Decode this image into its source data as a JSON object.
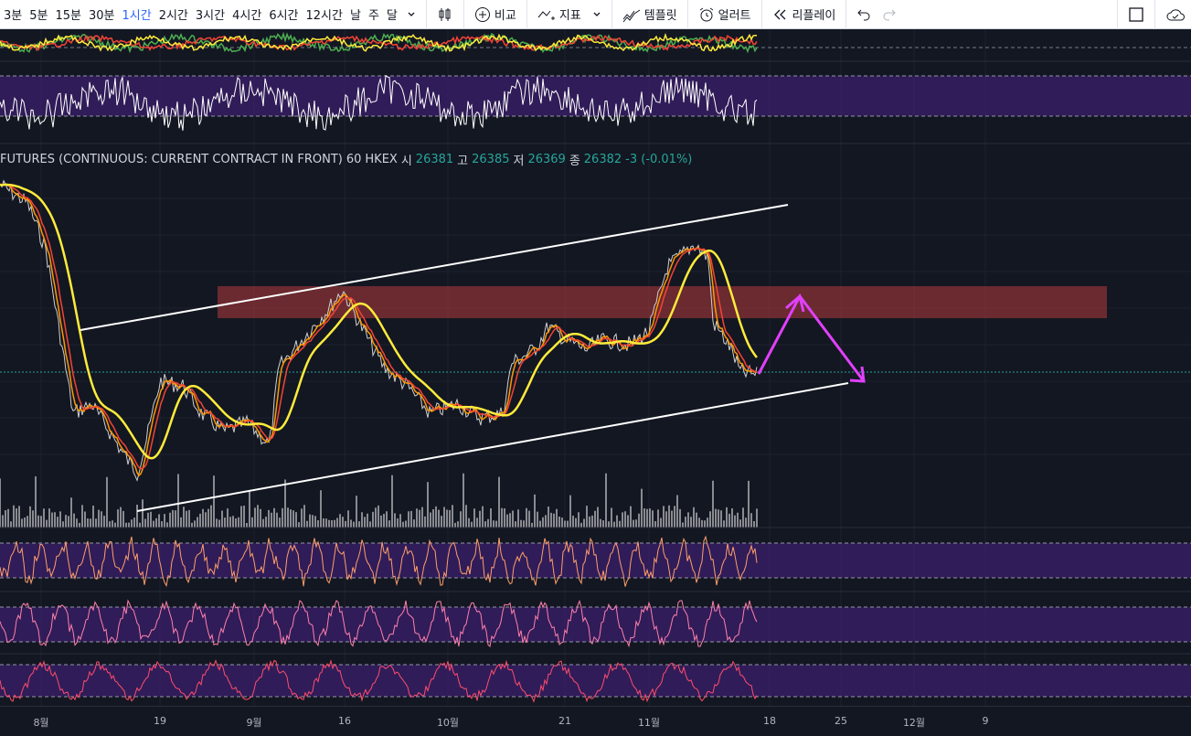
{
  "toolbar": {
    "timeframes": [
      "3분",
      "5분",
      "15분",
      "30분",
      "1시간",
      "2시간",
      "3시간",
      "4시간",
      "6시간",
      "12시간",
      "날",
      "주",
      "달"
    ],
    "active_timeframe": "1시간",
    "compare_label": "비교",
    "indicators_label": "지표",
    "templates_label": "템플릿",
    "alert_label": "얼러트",
    "replay_label": "리플레이",
    "icons": {
      "timeframe_menu": "chevron-down-icon",
      "chart_type": "candlestick-icon",
      "compare": "plus-circle-icon",
      "indicators": "indicators-icon",
      "indicators_menu": "chevron-down-icon",
      "templates": "templates-icon",
      "alert": "alarm-clock-icon",
      "replay": "rewind-icon",
      "undo": "undo-icon",
      "redo": "redo-icon",
      "fullscreen": "square-icon",
      "cloud": "cloud-icon"
    }
  },
  "legend": {
    "symbol": "FUTURES (CONTINUOUS: CURRENT CONTRACT IN FRONT)",
    "interval": "60",
    "exchange": "HKEX",
    "open_label": "시",
    "open": "26381",
    "high_label": "고",
    "high": "26385",
    "low_label": "저",
    "low": "26369",
    "close_label": "종",
    "close": "26382",
    "change": "-3 (-0.01%)"
  },
  "time_axis": [
    "8월",
    "19",
    "9월",
    "16",
    "10월",
    "21",
    "11월",
    "18",
    "25",
    "12월",
    "9"
  ],
  "colors": {
    "background": "#131722",
    "price_line": "#cfcfcf",
    "ma_yellow": "#ffeb3b",
    "ma_orange": "#ff9800",
    "ma_red": "#f44336",
    "resistance_zone": "#b23b3b",
    "projection_arrow": "#e040fb",
    "trend_lines": "#ffffff",
    "volume": "#ffffff",
    "indicator_band": "#3b1f6b",
    "last_price_line": "#26a69a"
  }
}
